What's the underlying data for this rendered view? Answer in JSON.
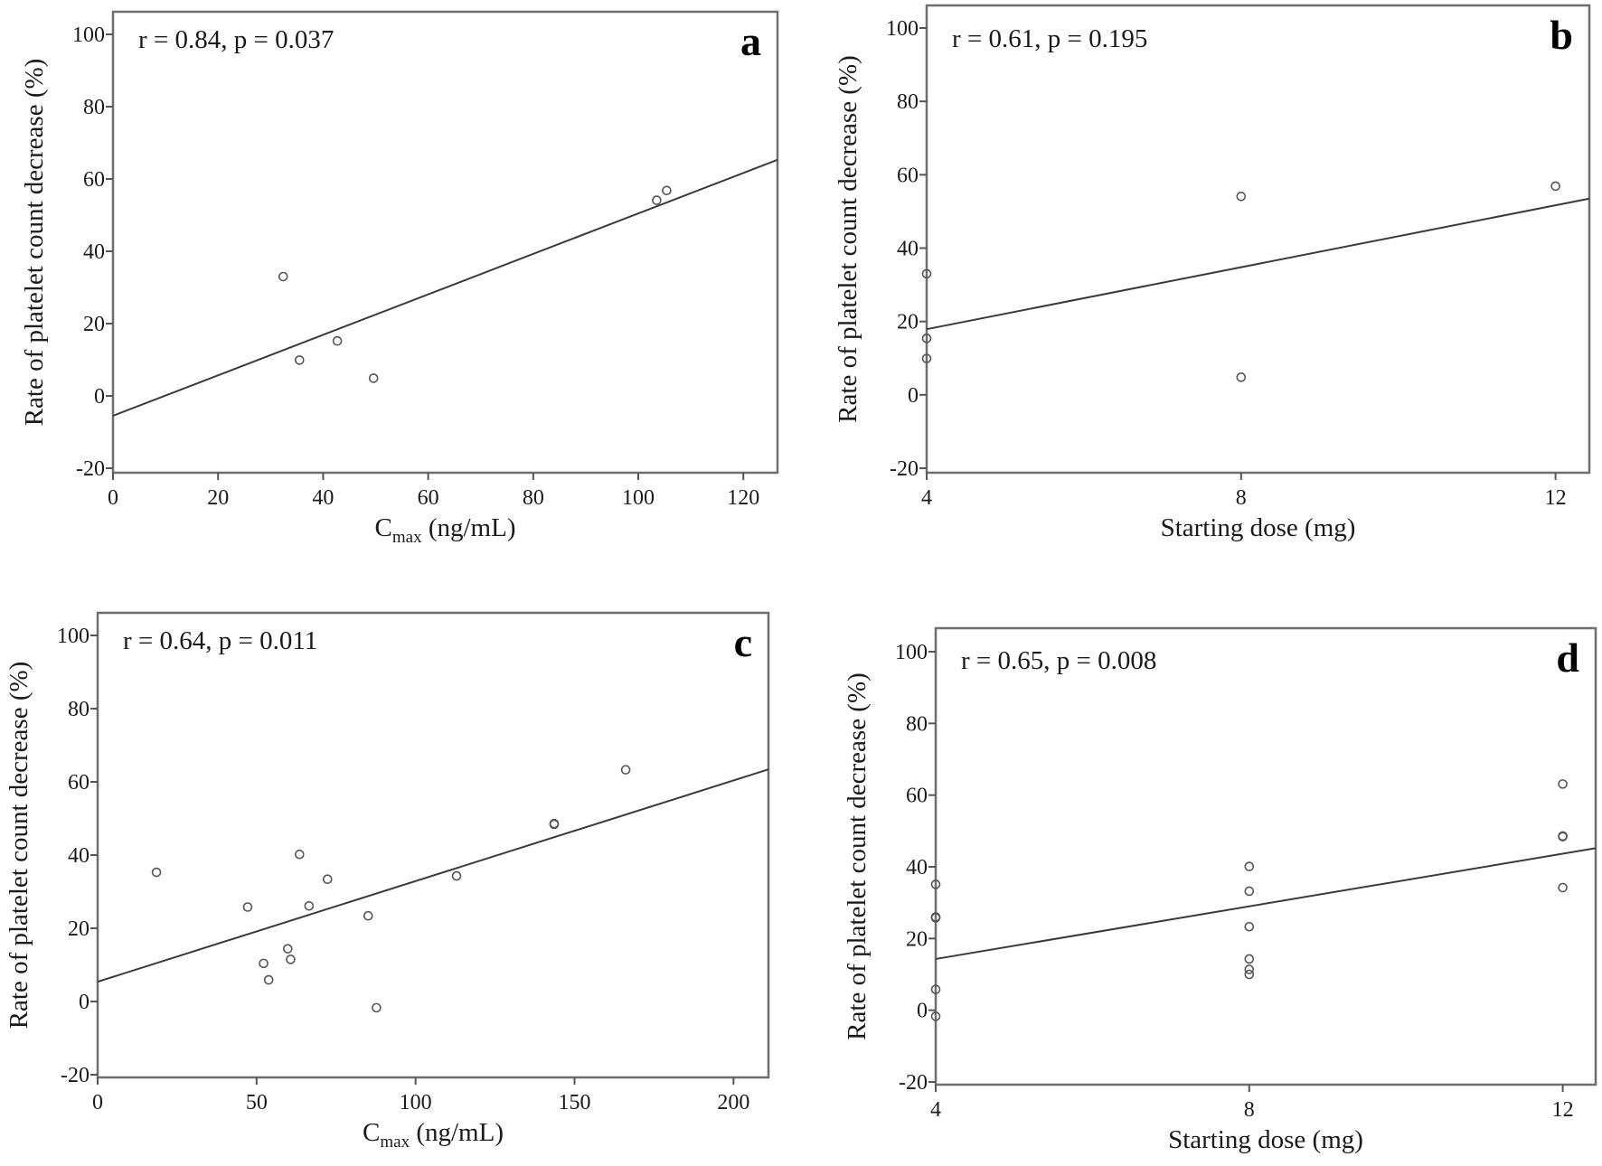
{
  "figure": {
    "panels": [
      "a",
      "b",
      "c",
      "d"
    ]
  },
  "chart_data": [
    {
      "panel": "a",
      "type": "scatter",
      "title": "",
      "annotation": "r = 0.84, p = 0.037",
      "panel_label": "a",
      "xlabel_main": "C",
      "xlabel_sub": "max",
      "xlabel_rest": " (ng/mL)",
      "ylabel": "Rate of platelet  count decrease (%)",
      "xlim": [
        0,
        126.5
      ],
      "ylim": [
        -20,
        106
      ],
      "xticks": [
        0,
        20,
        40,
        60,
        80,
        100,
        120
      ],
      "xtick_labels": [
        "0",
        "20",
        "40",
        "60",
        "80",
        "100",
        "120"
      ],
      "yticks": [
        -20,
        0,
        20,
        40,
        60,
        80,
        100
      ],
      "ytick_labels": [
        "-20",
        "0",
        "20",
        "40",
        "60",
        "80",
        "100"
      ],
      "grid": false,
      "points": [
        {
          "x": 32.4,
          "y": 33.0
        },
        {
          "x": 35.5,
          "y": 9.9
        },
        {
          "x": 42.7,
          "y": 15.2
        },
        {
          "x": 49.6,
          "y": 4.9
        },
        {
          "x": 103.5,
          "y": 54.1
        },
        {
          "x": 105.4,
          "y": 56.8
        }
      ],
      "fit_line": {
        "x0": 0,
        "y0": -5.5,
        "x1": 126.5,
        "y1": 65.3
      }
    },
    {
      "panel": "b",
      "type": "scatter",
      "title": "",
      "annotation": "r = 0.61, p = 0.195",
      "panel_label": "b",
      "xlabel_main": "Starting  dose (mg)",
      "xlabel_sub": "",
      "xlabel_rest": "",
      "ylabel": "Rate of platelet  count decrease (%)",
      "xlim": [
        4,
        12.43
      ],
      "ylim": [
        -20,
        106
      ],
      "xticks": [
        4,
        8,
        12
      ],
      "xtick_labels": [
        "4",
        "8",
        "12"
      ],
      "yticks": [
        -20,
        0,
        20,
        40,
        60,
        80,
        100
      ],
      "ytick_labels": [
        "-20",
        "0",
        "20",
        "40",
        "60",
        "80",
        "100"
      ],
      "grid": false,
      "points": [
        {
          "x": 4,
          "y": 33.0
        },
        {
          "x": 4,
          "y": 15.4
        },
        {
          "x": 4,
          "y": 9.9
        },
        {
          "x": 8,
          "y": 54.1
        },
        {
          "x": 8,
          "y": 4.8
        },
        {
          "x": 12,
          "y": 56.9
        }
      ],
      "fit_line": {
        "x0": 4,
        "y0": 17.9,
        "x1": 12.43,
        "y1": 53.5
      }
    },
    {
      "panel": "c",
      "type": "scatter",
      "title": "",
      "annotation": "r = 0.64, p = 0.011",
      "panel_label": "c",
      "xlabel_main": "C",
      "xlabel_sub": "max",
      "xlabel_rest": " (ng/mL)",
      "ylabel": "Rate of platelet  count decrease (%)",
      "xlim": [
        0,
        211
      ],
      "ylim": [
        -20,
        106
      ],
      "xticks": [
        0,
        50,
        100,
        150,
        200
      ],
      "xtick_labels": [
        "0",
        "50",
        "100",
        "150",
        "200"
      ],
      "yticks": [
        -20,
        0,
        20,
        40,
        60,
        80,
        100
      ],
      "ytick_labels": [
        "-20",
        "0",
        "20",
        "40",
        "60",
        "80",
        "100"
      ],
      "grid": false,
      "points": [
        {
          "x": 18.5,
          "y": 35.3
        },
        {
          "x": 47.2,
          "y": 25.8
        },
        {
          "x": 52.2,
          "y": 10.4
        },
        {
          "x": 53.8,
          "y": 5.9
        },
        {
          "x": 59.8,
          "y": 14.4
        },
        {
          "x": 60.7,
          "y": 11.5
        },
        {
          "x": 63.5,
          "y": 40.2
        },
        {
          "x": 66.5,
          "y": 26.1
        },
        {
          "x": 72.3,
          "y": 33.4
        },
        {
          "x": 85.1,
          "y": 23.4
        },
        {
          "x": 87.7,
          "y": -1.7
        },
        {
          "x": 112.9,
          "y": 34.3
        },
        {
          "x": 143.6,
          "y": 48.4
        },
        {
          "x": 143.6,
          "y": 48.6
        },
        {
          "x": 166.1,
          "y": 63.3
        }
      ],
      "fit_line": {
        "x0": 0,
        "y0": 5.4,
        "x1": 211,
        "y1": 63.4
      }
    },
    {
      "panel": "d",
      "type": "scatter",
      "title": "",
      "annotation": "r = 0.65, p = 0.008",
      "panel_label": "d",
      "xlabel_main": "Starting  dose (mg)",
      "xlabel_sub": "",
      "xlabel_rest": "",
      "ylabel": "Rate of platelet  count decrease (%)",
      "xlim": [
        4,
        12.42
      ],
      "ylim": [
        -20,
        106
      ],
      "xticks": [
        4,
        8,
        12
      ],
      "xtick_labels": [
        "4",
        "8",
        "12"
      ],
      "yticks": [
        -20,
        0,
        20,
        40,
        60,
        80,
        100
      ],
      "ytick_labels": [
        "-20",
        "0",
        "20",
        "40",
        "60",
        "80",
        "100"
      ],
      "grid": false,
      "points": [
        {
          "x": 4,
          "y": 35.1
        },
        {
          "x": 4,
          "y": 25.8
        },
        {
          "x": 4,
          "y": 26.0
        },
        {
          "x": 4,
          "y": 5.8
        },
        {
          "x": 4,
          "y": -1.7
        },
        {
          "x": 8,
          "y": 40.1
        },
        {
          "x": 8,
          "y": 33.2
        },
        {
          "x": 8,
          "y": 23.3
        },
        {
          "x": 8,
          "y": 14.3
        },
        {
          "x": 8,
          "y": 11.4
        },
        {
          "x": 8,
          "y": 10.0
        },
        {
          "x": 12,
          "y": 63.1
        },
        {
          "x": 12,
          "y": 48.4
        },
        {
          "x": 12,
          "y": 48.6
        },
        {
          "x": 12,
          "y": 34.2
        }
      ],
      "fit_line": {
        "x0": 4,
        "y0": 14.3,
        "x1": 12.42,
        "y1": 45.2
      }
    }
  ]
}
